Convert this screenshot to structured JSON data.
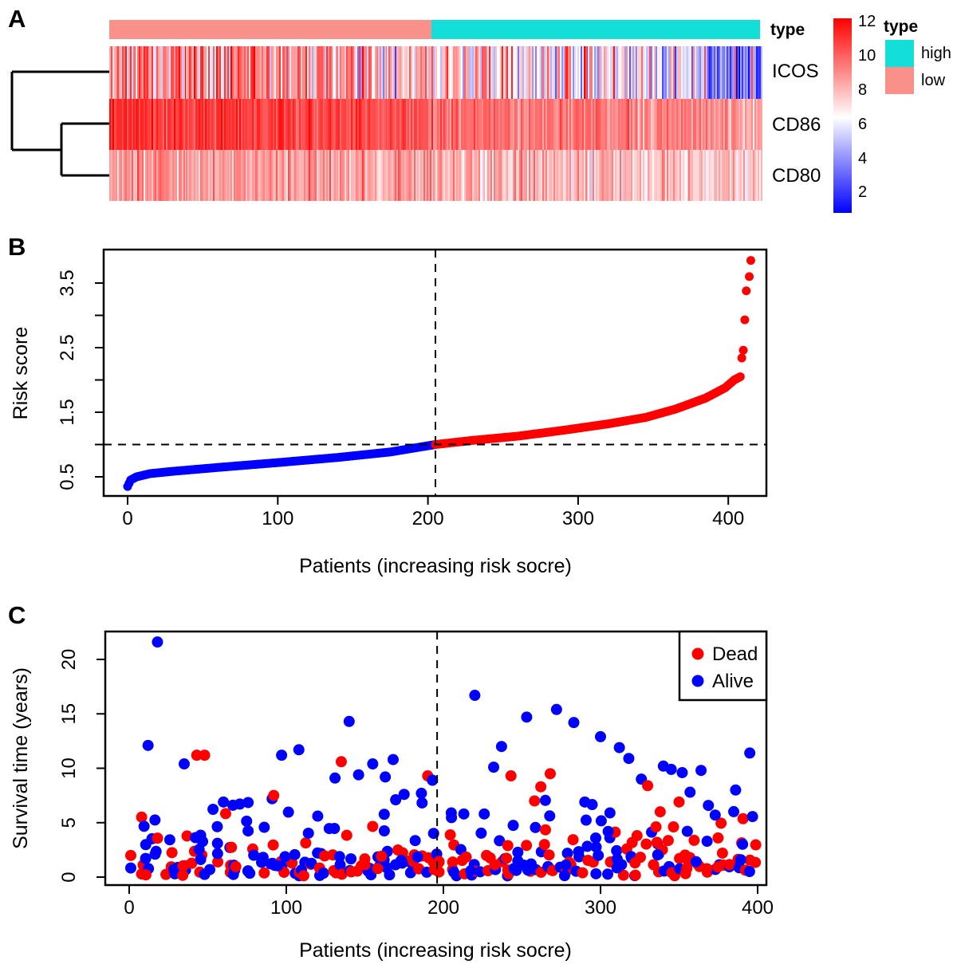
{
  "panels": {
    "a": "A",
    "b": "B",
    "c": "C"
  },
  "colors": {
    "red": "#FF0000",
    "blue": "#0000FF",
    "low_group": "#F9908A",
    "high_group": "#13DED8",
    "black": "#000000"
  },
  "chart_data": [
    {
      "type": "heatmap",
      "panel": "A",
      "rows": [
        "ICOS",
        "CD86",
        "CD80"
      ],
      "n_columns": 416,
      "group_split_column": 206,
      "annotation": {
        "label": "type",
        "groups": [
          {
            "name": "low",
            "color": "#F9908A",
            "n": 206
          },
          {
            "name": "high",
            "color": "#13DED8",
            "n": 210
          }
        ]
      },
      "legend": {
        "title": "type",
        "entries": [
          {
            "label": "high",
            "color": "#13DED8"
          },
          {
            "label": "low",
            "color": "#F9908A"
          }
        ]
      },
      "colorbar": {
        "ticks": [
          12,
          10,
          8,
          6,
          4,
          2
        ],
        "min": 0.8,
        "mid": 6.4,
        "max": 12.2,
        "min_color": "#0000FF",
        "mid_color": "#FFFFFF",
        "max_color": "#FF0000"
      },
      "row_value_model": {
        "seed": 11,
        "ICOS": {
          "low": {
            "mean_start": 9.7,
            "mean_end": 8.9,
            "sd": 1.2,
            "p_dip": 0.13,
            "p_blue": 0.03
          },
          "high": {
            "mean_start": 7.8,
            "mean_end": 4.6,
            "sd": 1.7,
            "tail_from": 380,
            "tail_mean": 3.2,
            "tail_sd": 1.3,
            "p_spike": 0.06
          }
        },
        "CD86": {
          "low": {
            "mean_start": 11.0,
            "mean_end": 10.5,
            "sd": 0.65
          },
          "high": {
            "mean_start": 9.9,
            "mean_end": 8.7,
            "sd": 0.75
          }
        },
        "CD80": {
          "low": {
            "mean_start": 8.8,
            "mean_end": 8.5,
            "sd": 0.8
          },
          "high": {
            "mean_start": 8.3,
            "mean_end": 7.6,
            "sd": 0.9,
            "p_dip": 0.05
          }
        }
      }
    },
    {
      "type": "scatter",
      "panel": "B",
      "name": "risk-score-curve",
      "xlabel": "Patients (increasing risk socre)",
      "ylabel": "Risk score",
      "x_ticks": [
        0,
        100,
        200,
        300,
        400
      ],
      "y_ticks": [
        0.5,
        1,
        1.5,
        2,
        2.5,
        3,
        3.5
      ],
      "y_tick_labels": [
        0.5,
        1.5,
        2.5,
        3.5
      ],
      "n_curve": 409,
      "cutoff_index": 205,
      "cutoff_value": 1.0,
      "low_color": "#0000FF",
      "high_color": "#FF0000",
      "anchors": [
        [
          0,
          0.35
        ],
        [
          2,
          0.45
        ],
        [
          6,
          0.5
        ],
        [
          15,
          0.55
        ],
        [
          30,
          0.585
        ],
        [
          60,
          0.645
        ],
        [
          100,
          0.72
        ],
        [
          140,
          0.8
        ],
        [
          175,
          0.885
        ],
        [
          205,
          1.0
        ],
        [
          230,
          1.065
        ],
        [
          260,
          1.13
        ],
        [
          290,
          1.22
        ],
        [
          320,
          1.32
        ],
        [
          345,
          1.42
        ],
        [
          365,
          1.55
        ],
        [
          385,
          1.72
        ],
        [
          398,
          1.88
        ],
        [
          404,
          2.0
        ],
        [
          408,
          2.05
        ]
      ],
      "outliers": [
        [
          409,
          2.34
        ],
        [
          410,
          2.46
        ],
        [
          411,
          2.93
        ],
        [
          412,
          3.38
        ],
        [
          414,
          3.6
        ],
        [
          415,
          3.85
        ]
      ],
      "dashed_h": 1.0,
      "dashed_v": 205
    },
    {
      "type": "scatter",
      "panel": "C",
      "name": "survival-time-scatter",
      "xlabel": "Patients (increasing risk socre)",
      "ylabel": "Survival time (years)",
      "x_ticks": [
        0,
        100,
        200,
        300,
        400
      ],
      "y_ticks": [
        0,
        5,
        10,
        15,
        20
      ],
      "dashed_v": 196,
      "legend": [
        {
          "label": "Dead",
          "color": "#FF0000"
        },
        {
          "label": "Alive",
          "color": "#0000FF"
        }
      ],
      "points_notable": [
        [
          12,
          12.1,
          "A"
        ],
        [
          18,
          21.6,
          "A"
        ],
        [
          35,
          10.4,
          "A"
        ],
        [
          43,
          11.2,
          "D"
        ],
        [
          48,
          11.2,
          "D"
        ],
        [
          60,
          6.9,
          "A"
        ],
        [
          66,
          6.6,
          "A"
        ],
        [
          91,
          7.2,
          "A"
        ],
        [
          92,
          7.5,
          "D"
        ],
        [
          97,
          11.2,
          "A"
        ],
        [
          108,
          11.7,
          "A"
        ],
        [
          120,
          5.6,
          "A"
        ],
        [
          131,
          9.1,
          "A"
        ],
        [
          135,
          10.6,
          "D"
        ],
        [
          140,
          14.3,
          "A"
        ],
        [
          146,
          9.4,
          "A"
        ],
        [
          155,
          10.4,
          "A"
        ],
        [
          163,
          9.2,
          "A"
        ],
        [
          168,
          10.8,
          "A"
        ],
        [
          175,
          7.6,
          "A"
        ],
        [
          186,
          7.7,
          "A"
        ],
        [
          190,
          9.3,
          "D"
        ],
        [
          193,
          8.9,
          "A"
        ],
        [
          205,
          5.9,
          "A"
        ],
        [
          213,
          5.8,
          "A"
        ],
        [
          220,
          16.7,
          "A"
        ],
        [
          226,
          5.8,
          "A"
        ],
        [
          232,
          10.1,
          "A"
        ],
        [
          237,
          12.0,
          "A"
        ],
        [
          243,
          9.3,
          "D"
        ],
        [
          253,
          14.7,
          "A"
        ],
        [
          258,
          7.0,
          "D"
        ],
        [
          262,
          8.3,
          "D"
        ],
        [
          268,
          9.5,
          "D"
        ],
        [
          272,
          15.4,
          "A"
        ],
        [
          283,
          14.2,
          "A"
        ],
        [
          290,
          6.9,
          "A"
        ],
        [
          300,
          12.9,
          "A"
        ],
        [
          306,
          5.9,
          "A"
        ],
        [
          312,
          11.9,
          "A"
        ],
        [
          318,
          10.9,
          "A"
        ],
        [
          326,
          9.0,
          "A"
        ],
        [
          330,
          8.4,
          "D"
        ],
        [
          338,
          6.0,
          "D"
        ],
        [
          340,
          10.2,
          "A"
        ],
        [
          345,
          9.9,
          "A"
        ],
        [
          350,
          6.9,
          "D"
        ],
        [
          352,
          9.6,
          "A"
        ],
        [
          357,
          7.8,
          "A"
        ],
        [
          364,
          9.8,
          "A"
        ],
        [
          373,
          5.7,
          "A"
        ],
        [
          386,
          8.0,
          "A"
        ],
        [
          395,
          11.4,
          "A"
        ]
      ],
      "cloud_model": {
        "seed": 20240601,
        "n": 300,
        "x_min": 2,
        "x_max": 400,
        "dead_fraction_low": 0.34,
        "dead_fraction_high": 0.5,
        "risk_cutoff_x": 196,
        "alive_scale": 2.6,
        "alive_cap": 7.3,
        "dead_scale": 1.6,
        "dead_cap": 6.5
      },
      "ylim": [
        0,
        22.5
      ]
    }
  ]
}
